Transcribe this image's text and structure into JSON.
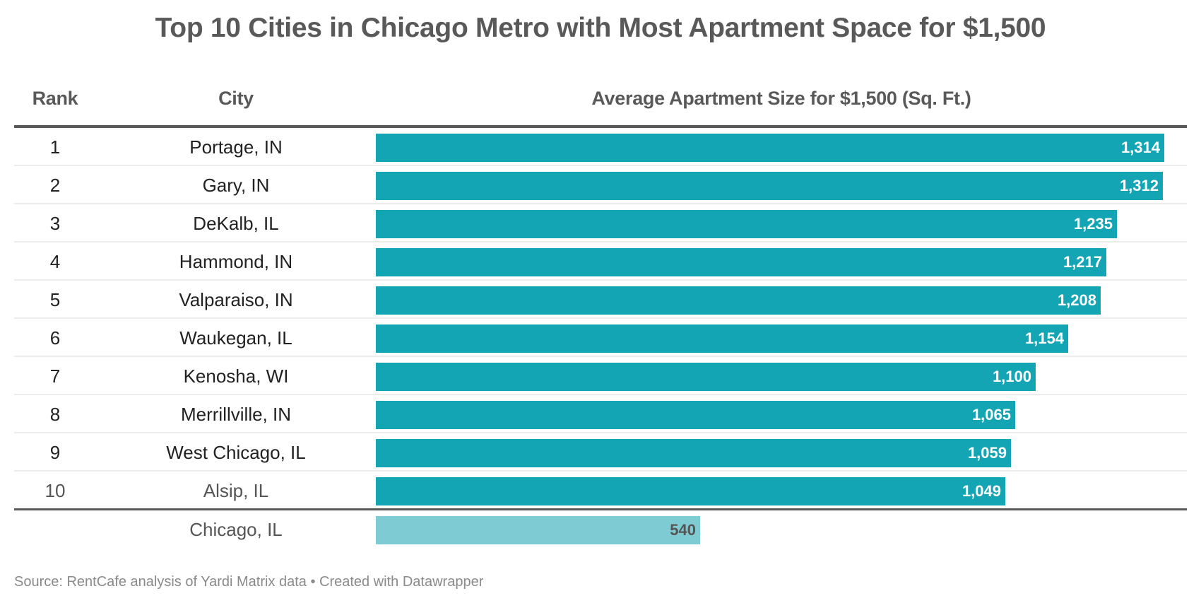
{
  "title": "Top 10 Cities in Chicago Metro with Most Apartment Space for $1,500",
  "headers": {
    "rank": "Rank",
    "city": "City",
    "size": "Average Apartment Size for $1,500 (Sq. Ft.)"
  },
  "colors": {
    "bar": "#14a5b4",
    "reference_bar": "#7fcbd4",
    "text": "#595959"
  },
  "footer": "Source: RentCafe analysis of Yardi Matrix data • Created with Datawrapper",
  "chart_data": {
    "type": "bar",
    "orientation": "horizontal",
    "title": "Top 10 Cities in Chicago Metro with Most Apartment Space for $1,500",
    "xlabel": "Average Apartment Size for $1,500 (Sq. Ft.)",
    "ylabel": "City",
    "xlim": [
      0,
      1314
    ],
    "grid": false,
    "rows": [
      {
        "rank": "1",
        "city": "Portage, IN",
        "value": 1314,
        "label": "1,314"
      },
      {
        "rank": "2",
        "city": "Gary, IN",
        "value": 1312,
        "label": "1,312"
      },
      {
        "rank": "3",
        "city": "DeKalb, IL",
        "value": 1235,
        "label": "1,235"
      },
      {
        "rank": "4",
        "city": "Hammond, IN",
        "value": 1217,
        "label": "1,217"
      },
      {
        "rank": "5",
        "city": "Valparaiso, IN",
        "value": 1208,
        "label": "1,208"
      },
      {
        "rank": "6",
        "city": "Waukegan, IL",
        "value": 1154,
        "label": "1,154"
      },
      {
        "rank": "7",
        "city": "Kenosha, WI",
        "value": 1100,
        "label": "1,100"
      },
      {
        "rank": "8",
        "city": "Merrillville, IN",
        "value": 1065,
        "label": "1,065"
      },
      {
        "rank": "9",
        "city": "West Chicago, IL",
        "value": 1059,
        "label": "1,059"
      },
      {
        "rank": "10",
        "city": "Alsip, IL",
        "value": 1049,
        "label": "1,049"
      }
    ],
    "reference": {
      "rank": "",
      "city": "Chicago, IL",
      "value": 540,
      "label": "540"
    }
  }
}
